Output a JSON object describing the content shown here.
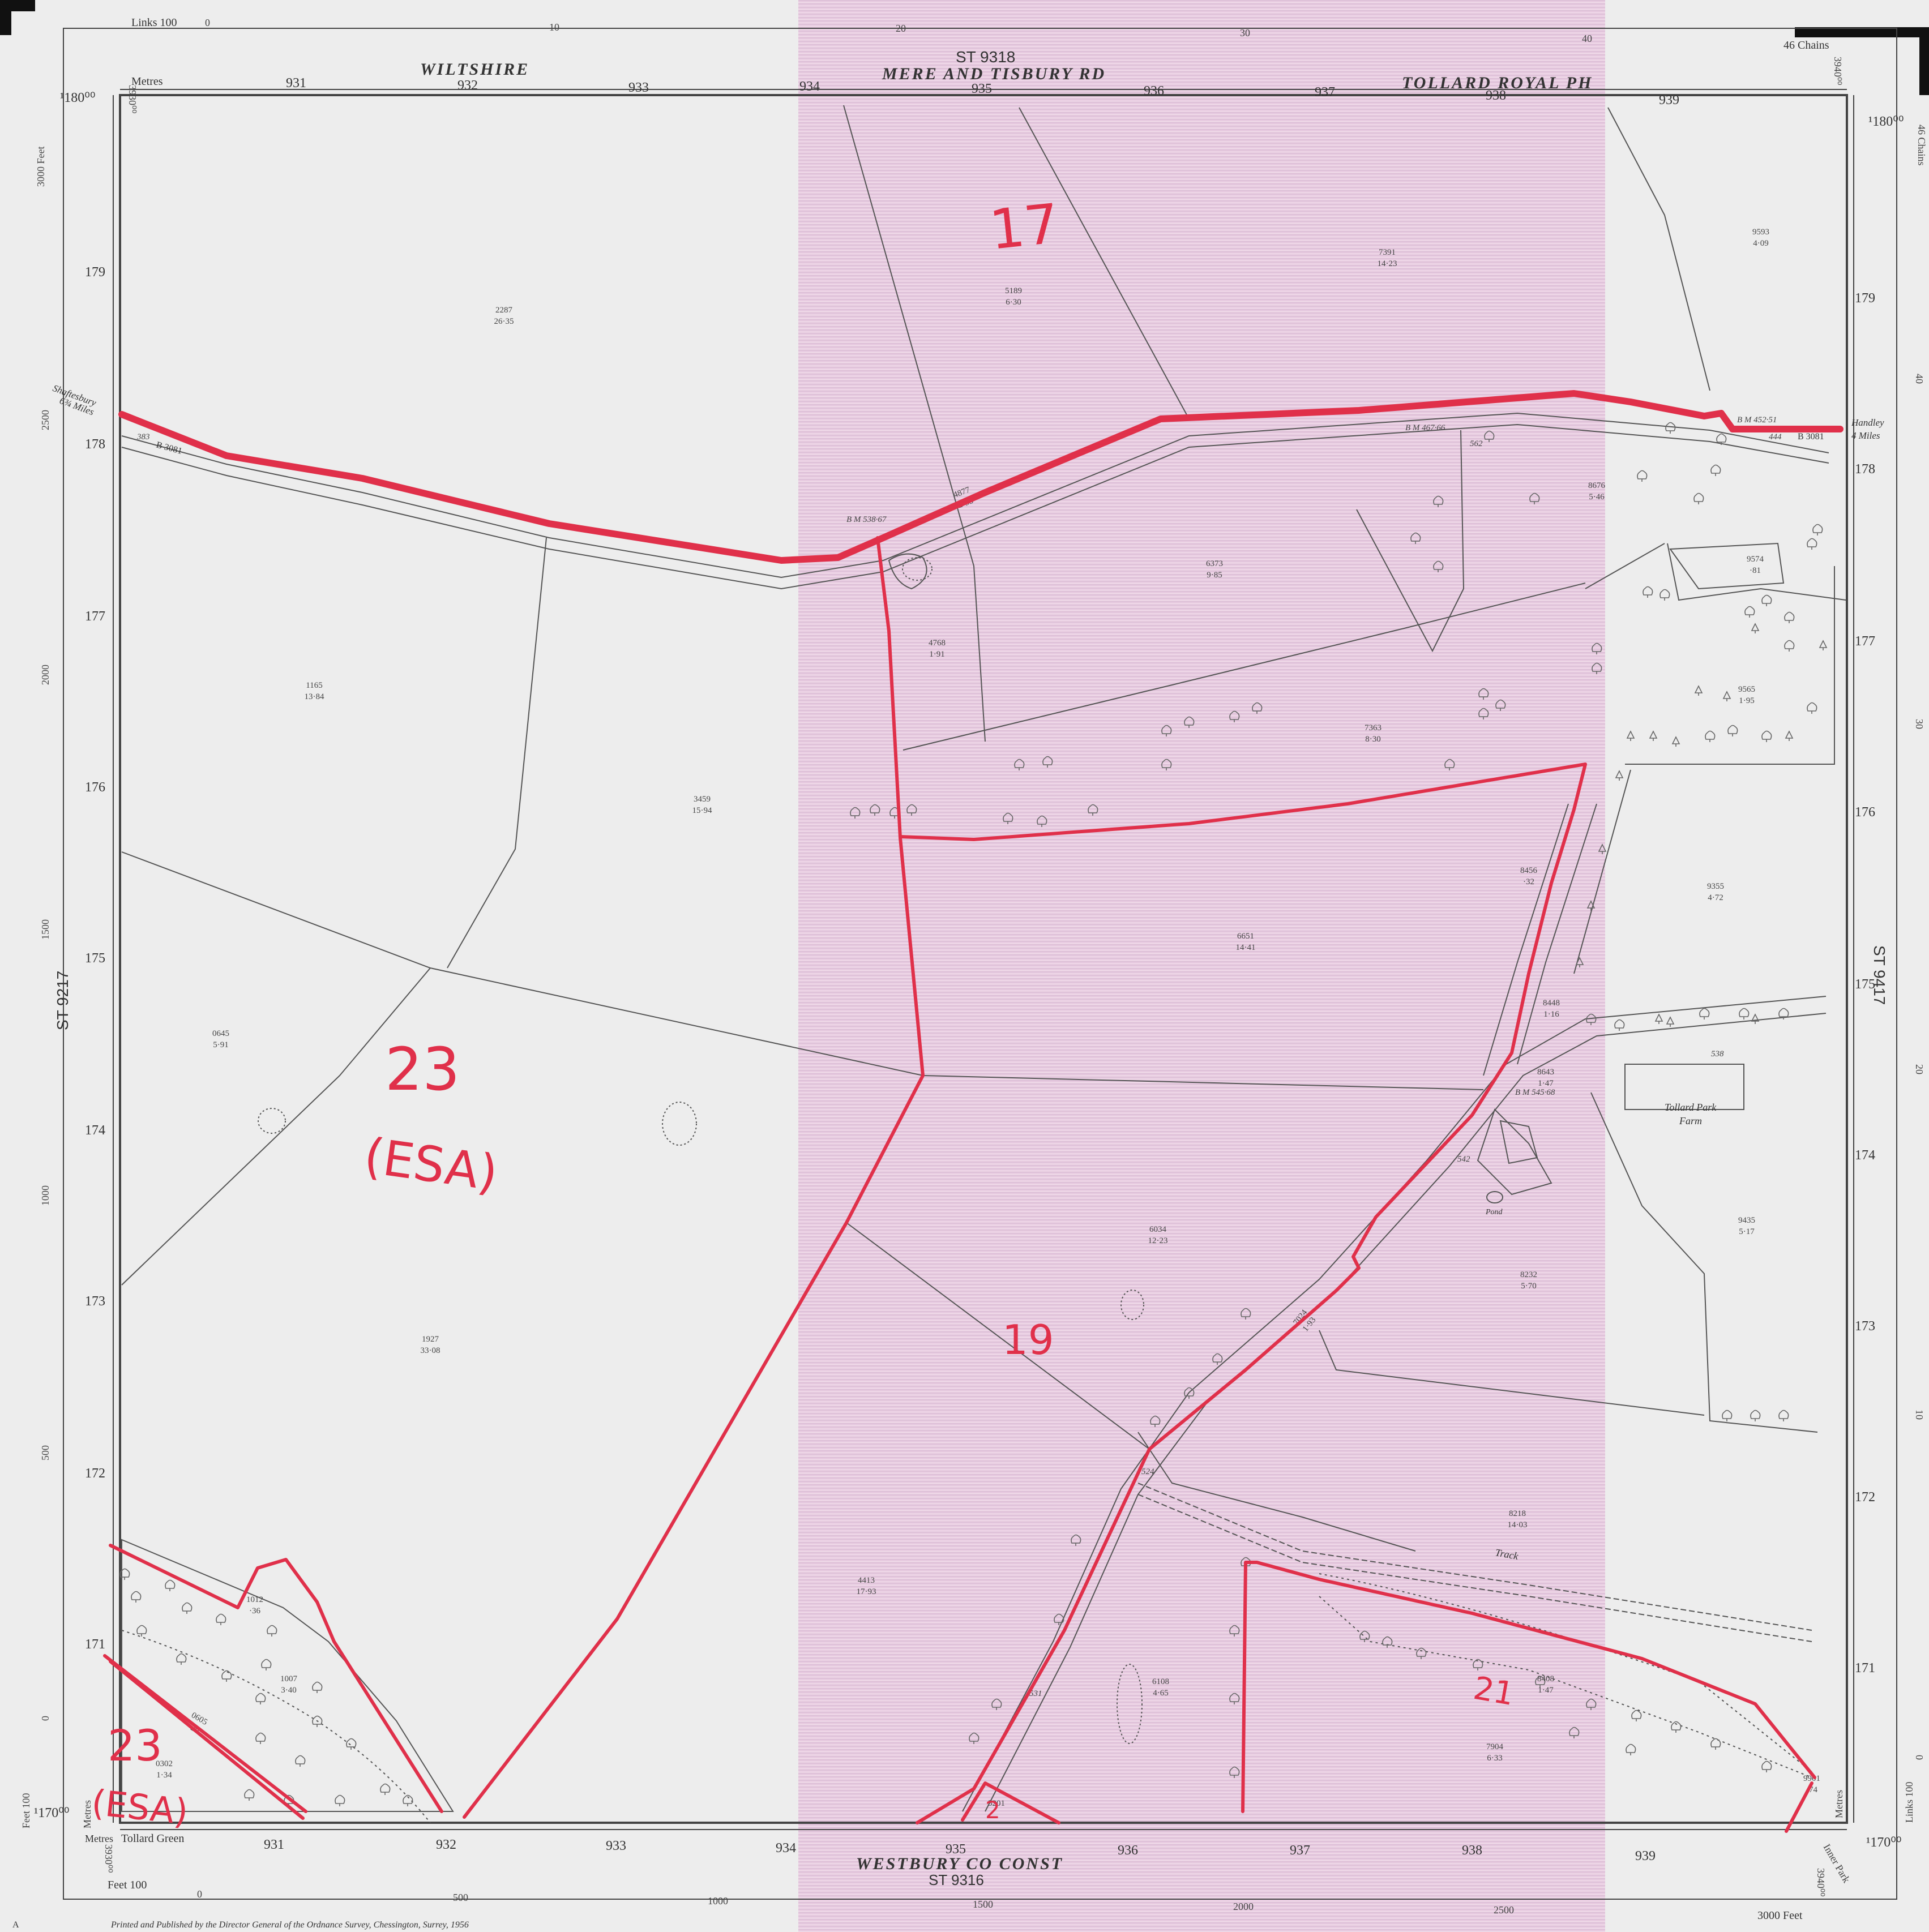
{
  "colors": {
    "paper": "#ececec",
    "tint": "#e6c8e0",
    "line": "#555555",
    "annotation_red": "#e0304a"
  },
  "header": {
    "county": "WILTSHIRE",
    "sheet_top": "ST 9318",
    "road_top": "MERE AND TISBURY RD",
    "parish_top": "TOLLARD ROYAL PH",
    "links_label": "Links 100",
    "metres_label": "Metres",
    "chains_label": "46 Chains"
  },
  "footer": {
    "const": "WESTBURY CO CONST",
    "sheet_bottom": "ST 9316",
    "tollard_green": "Tollard Green",
    "feet_label": "Feet 100",
    "feet_end": "3000 Feet",
    "metres_label": "Metres",
    "printed": "Printed and Published by the Director General of the Ordnance Survey, Chessington, Surrey, 1956",
    "corner_a": "A",
    "inner_park": "Inner Park"
  },
  "side": {
    "left_sheet": "ST 9217",
    "right_sheet": "ST 9417",
    "left_feet": "3000 Feet",
    "right_chains": "46 Chains",
    "links_right": "Links 100",
    "metres_right": "Metres",
    "feet_left": "Feet 100",
    "metres_left": "Metres"
  },
  "grid": {
    "easting_labels": [
      "931",
      "932",
      "933",
      "934",
      "935",
      "936",
      "937",
      "938",
      "939"
    ],
    "northing_labels": [
      "179",
      "178",
      "177",
      "176",
      "175",
      "174",
      "173",
      "172",
      "171"
    ],
    "corner_north_left": "¹180⁰⁰",
    "corner_north_right": "¹180⁰⁰",
    "corner_south_left": "¹170⁰⁰",
    "corner_south_right": "¹170⁰⁰",
    "corner_east_left_top": "3930⁰⁰",
    "corner_east_right_top": "3940⁰⁰",
    "corner_east_left_bottom": "3930⁰⁰",
    "corner_east_right_bottom": "3940⁰⁰",
    "top_links": [
      "0",
      "10",
      "20",
      "30",
      "40"
    ],
    "bottom_feet": [
      "0",
      "500",
      "1000",
      "1500",
      "2000",
      "2500"
    ],
    "left_feet": [
      "2500",
      "2000",
      "1500",
      "1000",
      "500",
      "0"
    ],
    "right_chains": [
      "40",
      "30",
      "20",
      "10",
      "0"
    ]
  },
  "places": {
    "shaftesbury": "Shaftesbury",
    "shaftesbury_dist": "6¾ Miles",
    "handley": "Handley",
    "handley_dist": "4 Miles",
    "road_left": "B 3081",
    "road_right": "B 3081",
    "tollard_park_farm": "Tollard Park",
    "farm": "Farm",
    "pond": "Pond",
    "track": "Track"
  },
  "spot_heights": {
    "bm1": "B M 538·67",
    "bm2": "B M 467·66",
    "bm3": "B M 452·51",
    "bm4": "B M 545·68",
    "h383": "383",
    "h444": "444",
    "h542": "542",
    "h524": "524",
    "h531": "531",
    "h538": "538",
    "h562": "562"
  },
  "parcels": [
    {
      "id": "p2287",
      "num": "2287",
      "area": "26·35"
    },
    {
      "id": "p5189",
      "num": "5189",
      "area": "6·30"
    },
    {
      "id": "p7391",
      "num": "7391",
      "area": "14·23"
    },
    {
      "id": "p9593",
      "num": "9593",
      "area": "4·09"
    },
    {
      "id": "p4877",
      "num": "4877",
      "area": "2·33"
    },
    {
      "id": "p8676",
      "num": "8676",
      "area": "5·46"
    },
    {
      "id": "p6373",
      "num": "6373",
      "area": "9·85"
    },
    {
      "id": "p9574",
      "num": "9574",
      "area": "·81"
    },
    {
      "id": "p1165",
      "num": "1165",
      "area": "13·84"
    },
    {
      "id": "p4768",
      "num": "4768",
      "area": "1·91"
    },
    {
      "id": "p7363",
      "num": "7363",
      "area": "8·30"
    },
    {
      "id": "p9565",
      "num": "9565",
      "area": "1·95"
    },
    {
      "id": "p3459",
      "num": "3459",
      "area": "15·94"
    },
    {
      "id": "p8456",
      "num": "8456",
      "area": "·32"
    },
    {
      "id": "p9355",
      "num": "9355",
      "area": "4·72"
    },
    {
      "id": "p6651",
      "num": "6651",
      "area": "14·41"
    },
    {
      "id": "p0645",
      "num": "0645",
      "area": "5·91"
    },
    {
      "id": "p8448",
      "num": "8448",
      "area": "1·16"
    },
    {
      "id": "p8643",
      "num": "8643",
      "area": "1·47"
    },
    {
      "id": "p6034",
      "num": "6034",
      "area": "12·23"
    },
    {
      "id": "p9435",
      "num": "9435",
      "area": "5·17"
    },
    {
      "id": "p8232",
      "num": "8232",
      "area": "5·70"
    },
    {
      "id": "p1927",
      "num": "1927",
      "area": "33·08"
    },
    {
      "id": "p7024",
      "num": "7024",
      "area": "1·93"
    },
    {
      "id": "p8218",
      "num": "8218",
      "area": "14·03"
    },
    {
      "id": "p1012",
      "num": "1012",
      "area": "·36"
    },
    {
      "id": "p4413",
      "num": "4413",
      "area": "17·93"
    },
    {
      "id": "p1007",
      "num": "1007",
      "area": "3·40"
    },
    {
      "id": "p6108",
      "num": "6108",
      "area": "4·65"
    },
    {
      "id": "p8408",
      "num": "8408",
      "area": "1·47"
    },
    {
      "id": "p0605",
      "num": "0605",
      "area": "·29"
    },
    {
      "id": "p7904",
      "num": "7904",
      "area": "6·33"
    },
    {
      "id": "p0302",
      "num": "0302",
      "area": "1·34"
    },
    {
      "id": "p5201",
      "num": "5201",
      "area": ""
    },
    {
      "id": "p9901",
      "num": "9901",
      "area": "·74"
    }
  ],
  "annotations": {
    "a17": "17",
    "a23_num": "23",
    "a23_esa": "(ESA)",
    "a19": "19",
    "a21": "21",
    "a23b_num": "23",
    "a23b_esa": "(ESA)",
    "a2": "2"
  }
}
